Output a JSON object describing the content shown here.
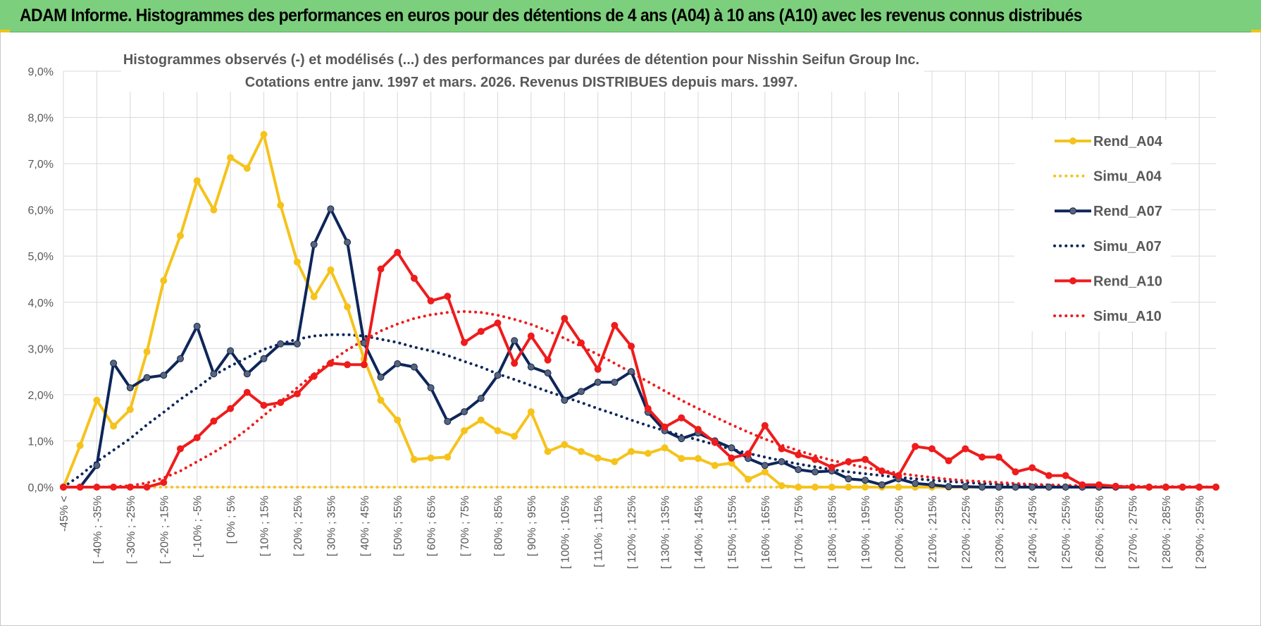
{
  "header": {
    "title": "ADAM Informe. Histogrammes des performances en euros pour des détentions de 4 ans (A04) à 10 ans (A10) avec les revenus connus distribués"
  },
  "colors": {
    "banner": "#7ccf7c",
    "a04": "#f5c31c",
    "a07": "#0e2659",
    "a10": "#ee1c1c",
    "grid": "#d9d9d9"
  },
  "chart_data": {
    "type": "line",
    "title": "Histogrammes observés (-) et modélisés (...) des performances par durées de détention pour Nisshin Seifun Group Inc.",
    "subtitle": "Cotations entre janv. 1997 et mars. 2026.  Revenus DISTRIBUES depuis mars. 1997.",
    "ylim": [
      0,
      9
    ],
    "y_ticks": [
      "0,0%",
      "1,0%",
      "2,0%",
      "3,0%",
      "4,0%",
      "5,0%",
      "6,0%",
      "7,0%",
      "8,0%",
      "9,0%"
    ],
    "grid": true,
    "legend_position": "right",
    "x_tick_labels": [
      "-45% <",
      "[ -40% ; -35%",
      "[ -30% ; -25%",
      "[ -20% ; -15%",
      "[ -10% ; -5%",
      "[ 0% ; 5%",
      "[ 10% ; 15%",
      "[ 20% ; 25%",
      "[ 30% ; 35%",
      "[ 40% ; 45%",
      "[ 50% ; 55%",
      "[ 60% ; 65%",
      "[ 70% ; 75%",
      "[ 80% ; 85%",
      "[ 90% ; 95%",
      "[ 100% ; 105%",
      "[ 110% ; 115%",
      "[ 120% ; 125%",
      "[ 130% ; 135%",
      "[ 140% ; 145%",
      "[ 150% ; 155%",
      "[ 160% ; 165%",
      "[ 170% ; 175%",
      "[ 180% ; 185%",
      "[ 190% ; 195%",
      "[ 200% ; 205%",
      "[ 210% ; 215%",
      "[ 220% ; 225%",
      "[ 230% ; 235%",
      "[ 240% ; 245%",
      "[ 250% ; 255%",
      "[ 260% ; 265%",
      "[ 270% ; 275%",
      "[ 280% ; 285%",
      "[ 290% ; 295%"
    ],
    "series": [
      {
        "name": "Rend_A04",
        "style": "solid",
        "color": "#f5c31c",
        "values": [
          0.0,
          0.9,
          1.88,
          1.32,
          1.68,
          2.93,
          4.47,
          5.44,
          6.63,
          6.0,
          7.13,
          6.9,
          7.63,
          6.1,
          4.87,
          4.12,
          4.7,
          3.9,
          2.77,
          1.88,
          1.45,
          0.6,
          0.63,
          0.65,
          1.22,
          1.45,
          1.22,
          1.1,
          1.63,
          0.77,
          0.92,
          0.77,
          0.63,
          0.55,
          0.77,
          0.73,
          0.85,
          0.62,
          0.62,
          0.47,
          0.52,
          0.17,
          0.33,
          0.03,
          0,
          0,
          0,
          0,
          0,
          0,
          0,
          0,
          0,
          0,
          0,
          0,
          0,
          0,
          0,
          0,
          0,
          0,
          0,
          0,
          0,
          0,
          0,
          0,
          0,
          0
        ]
      },
      {
        "name": "Simu_A04",
        "style": "dotted",
        "color": "#f5c31c",
        "values": [
          0,
          0,
          0,
          0,
          0,
          0,
          0,
          0,
          0,
          0,
          0,
          0,
          0,
          0,
          0,
          0,
          0,
          0,
          0,
          0,
          0,
          0,
          0,
          0,
          0,
          0,
          0,
          0,
          0,
          0,
          0,
          0,
          0,
          0,
          0,
          0,
          0,
          0,
          0,
          0,
          0,
          0,
          0,
          0,
          0,
          0,
          0,
          0,
          0,
          0,
          0,
          0,
          0,
          0,
          0,
          0,
          0,
          0,
          0,
          0,
          0,
          0,
          0,
          0,
          0,
          0,
          0,
          0,
          0,
          0
        ]
      },
      {
        "name": "Rend_A07",
        "style": "solid",
        "color": "#0e2659",
        "values": [
          0.0,
          0.0,
          0.47,
          2.68,
          2.15,
          2.37,
          2.42,
          2.78,
          3.48,
          2.45,
          2.95,
          2.45,
          2.78,
          3.1,
          3.1,
          5.25,
          6.02,
          5.3,
          3.12,
          2.38,
          2.67,
          2.6,
          2.15,
          1.42,
          1.63,
          1.92,
          2.42,
          3.17,
          2.6,
          2.47,
          1.88,
          2.07,
          2.27,
          2.27,
          2.5,
          1.62,
          1.22,
          1.05,
          1.17,
          1.0,
          0.85,
          0.62,
          0.47,
          0.55,
          0.38,
          0.33,
          0.35,
          0.18,
          0.15,
          0.05,
          0.18,
          0.08,
          0.05,
          0.01,
          0.01,
          0,
          0,
          0,
          0,
          0,
          0,
          0,
          0,
          0,
          0,
          0,
          0,
          0,
          0,
          0
        ]
      },
      {
        "name": "Simu_A07",
        "style": "dotted",
        "color": "#0e2659",
        "values": [
          0.0,
          0.25,
          0.55,
          0.8,
          1.05,
          1.35,
          1.62,
          1.9,
          2.15,
          2.42,
          2.62,
          2.8,
          2.98,
          3.1,
          3.2,
          3.27,
          3.3,
          3.3,
          3.27,
          3.2,
          3.13,
          3.03,
          2.95,
          2.85,
          2.72,
          2.6,
          2.45,
          2.33,
          2.2,
          2.07,
          1.95,
          1.83,
          1.7,
          1.58,
          1.45,
          1.33,
          1.22,
          1.12,
          1.02,
          0.92,
          0.82,
          0.73,
          0.65,
          0.57,
          0.5,
          0.44,
          0.38,
          0.33,
          0.29,
          0.25,
          0.21,
          0.18,
          0.15,
          0.12,
          0.1,
          0.08,
          0.06,
          0.05,
          0.04,
          0.03,
          0.02,
          0.02,
          0.01,
          0.01,
          0.01,
          0.01,
          0.0,
          0.0,
          0.0,
          0.0
        ]
      },
      {
        "name": "Rend_A10",
        "style": "solid",
        "color": "#ee1c1c",
        "values": [
          0,
          0,
          0,
          0,
          0.0,
          0.0,
          0.1,
          0.83,
          1.07,
          1.43,
          1.7,
          2.05,
          1.77,
          1.83,
          2.02,
          2.4,
          2.68,
          2.65,
          2.65,
          4.72,
          5.08,
          4.52,
          4.03,
          4.13,
          3.13,
          3.37,
          3.55,
          2.68,
          3.27,
          2.75,
          3.65,
          3.12,
          2.55,
          3.5,
          3.05,
          1.7,
          1.3,
          1.5,
          1.25,
          0.97,
          0.63,
          0.72,
          1.33,
          0.83,
          0.7,
          0.6,
          0.43,
          0.55,
          0.6,
          0.35,
          0.25,
          0.88,
          0.83,
          0.57,
          0.83,
          0.65,
          0.65,
          0.33,
          0.42,
          0.25,
          0.25,
          0.05,
          0.05,
          0.02,
          0.0,
          0.0,
          0.0,
          0.0,
          0.0,
          0.0
        ]
      },
      {
        "name": "Simu_A10",
        "style": "dotted",
        "color": "#ee1c1c",
        "values": [
          0,
          0,
          0,
          0.01,
          0.03,
          0.09,
          0.2,
          0.35,
          0.55,
          0.75,
          0.98,
          1.25,
          1.55,
          1.85,
          2.15,
          2.45,
          2.72,
          2.97,
          3.18,
          3.38,
          3.53,
          3.65,
          3.73,
          3.78,
          3.8,
          3.78,
          3.72,
          3.63,
          3.52,
          3.38,
          3.22,
          3.05,
          2.87,
          2.68,
          2.48,
          2.28,
          2.08,
          1.88,
          1.7,
          1.52,
          1.35,
          1.19,
          1.04,
          0.91,
          0.79,
          0.68,
          0.58,
          0.5,
          0.42,
          0.36,
          0.3,
          0.25,
          0.21,
          0.17,
          0.14,
          0.12,
          0.1,
          0.08,
          0.06,
          0.05,
          0.04,
          0.03,
          0.03,
          0.02,
          0.02,
          0.01,
          0.01,
          0.01,
          0.01,
          0.0
        ]
      }
    ]
  }
}
